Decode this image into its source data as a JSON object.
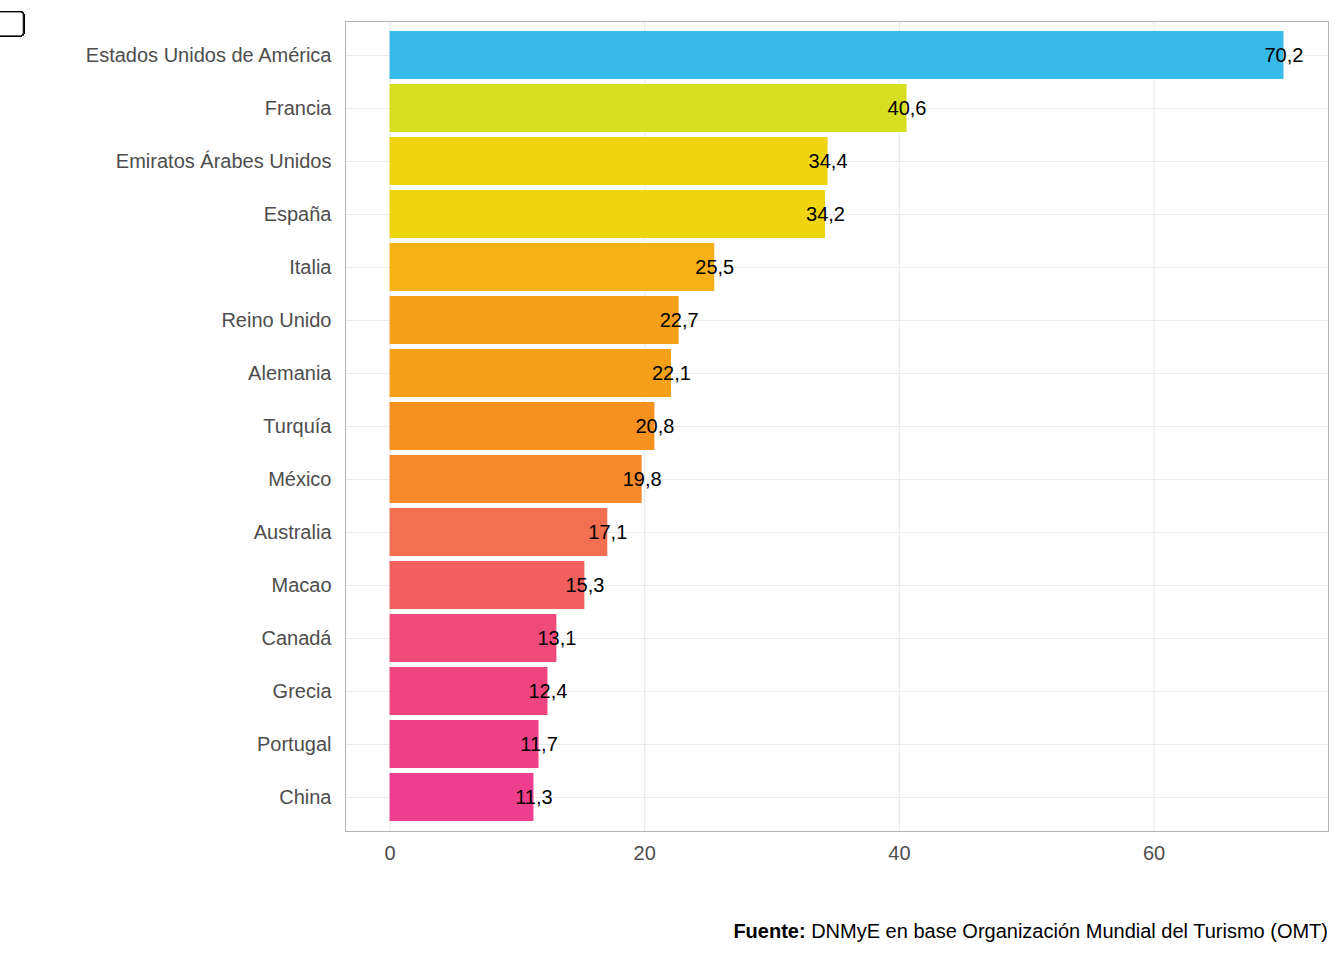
{
  "chart_data": {
    "type": "bar",
    "orientation": "horizontal",
    "categories": [
      "Estados Unidos de América",
      "Francia",
      "Emiratos Árabes Unidos",
      "España",
      "Italia",
      "Reino Unido",
      "Alemania",
      "Turquía",
      "México",
      "Australia",
      "Macao",
      "Canadá",
      "Grecia",
      "Portugal",
      "China"
    ],
    "values": [
      70.2,
      40.6,
      34.4,
      34.2,
      25.5,
      22.7,
      22.1,
      20.8,
      19.8,
      17.1,
      15.3,
      13.1,
      12.4,
      11.7,
      11.3
    ],
    "value_labels": [
      "70,2",
      "40,6",
      "34,4",
      "34,2",
      "25,5",
      "22,7",
      "22,1",
      "20,8",
      "19,8",
      "17,1",
      "15,3",
      "13,1",
      "12,4",
      "11,7",
      "11,3"
    ],
    "colors": [
      "#38bbeb",
      "#d8de22",
      "#efd410",
      "#efd410",
      "#f7b016",
      "#f6a01a",
      "#f6a01a",
      "#f5921f",
      "#f48a2c",
      "#f26f51",
      "#f15f5f",
      "#ee4a7a",
      "#ee4580",
      "#ee4288",
      "#ee3f8e"
    ],
    "xlim": [
      -3.5,
      73.7
    ],
    "xticks": [
      0,
      20,
      40,
      60
    ],
    "grid": true,
    "data_labels": true,
    "caption": "Fuente: DNMyE en base Organización Mundial del Turismo (OMT)"
  }
}
